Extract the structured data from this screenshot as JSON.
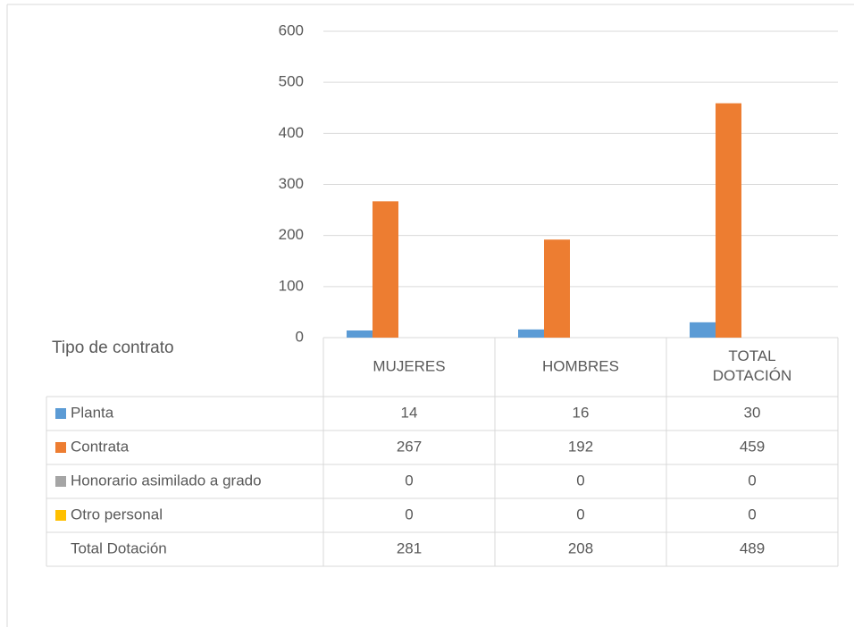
{
  "chart_data": {
    "type": "bar",
    "table_header": "Tipo de contrato",
    "categories": [
      "MUJERES",
      "HOMBRES",
      "TOTAL DOTACIÓN"
    ],
    "series": [
      {
        "name": "Planta",
        "color": "#5b9bd5",
        "values": [
          14,
          16,
          30
        ]
      },
      {
        "name": "Contrata",
        "color": "#ed7d31",
        "values": [
          267,
          192,
          459
        ]
      },
      {
        "name": "Honorario asimilado a grado",
        "color": "#a5a5a5",
        "values": [
          0,
          0,
          0
        ]
      },
      {
        "name": "Otro personal",
        "color": "#ffc000",
        "values": [
          0,
          0,
          0
        ]
      }
    ],
    "total_row": {
      "name": "Total Dotación",
      "values": [
        281,
        208,
        489
      ]
    },
    "ylim": [
      0,
      600
    ],
    "yticks": [
      0,
      100,
      200,
      300,
      400,
      500,
      600
    ],
    "grid": true
  }
}
